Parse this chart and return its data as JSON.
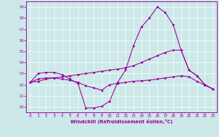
{
  "xlabel": "Windchill (Refroidissement éolien,°C)",
  "bg_color": "#cce8e8",
  "line_color": "#990099",
  "grid_color": "#ffffff",
  "xlim": [
    -0.5,
    23.5
  ],
  "ylim": [
    9.5,
    19.5
  ],
  "xticks": [
    0,
    1,
    2,
    3,
    4,
    5,
    6,
    7,
    8,
    9,
    10,
    11,
    12,
    13,
    14,
    15,
    16,
    17,
    18,
    19,
    20,
    21,
    22,
    23
  ],
  "yticks": [
    10,
    11,
    12,
    13,
    14,
    15,
    16,
    17,
    18,
    19
  ],
  "curve1": {
    "x": [
      0,
      1,
      2,
      3,
      4,
      5,
      6,
      7,
      8,
      9,
      10,
      11,
      12,
      13,
      14,
      15,
      16,
      17,
      18,
      19,
      20,
      21,
      22,
      23
    ],
    "y": [
      12.2,
      13.0,
      13.1,
      13.1,
      12.9,
      12.5,
      12.1,
      9.9,
      9.9,
      10.05,
      10.5,
      12.2,
      13.3,
      15.5,
      17.2,
      18.0,
      19.0,
      18.5,
      17.4,
      15.1,
      13.3,
      12.8,
      12.0,
      11.6
    ]
  },
  "curve2": {
    "x": [
      0,
      1,
      2,
      3,
      4,
      5,
      6,
      7,
      8,
      9,
      10,
      11,
      12,
      13,
      14,
      15,
      16,
      17,
      18,
      19,
      20,
      21,
      22,
      23
    ],
    "y": [
      12.2,
      12.3,
      12.5,
      12.6,
      12.7,
      12.8,
      12.9,
      13.0,
      13.1,
      13.2,
      13.3,
      13.4,
      13.5,
      13.7,
      14.0,
      14.3,
      14.6,
      14.9,
      15.1,
      15.1,
      13.3,
      12.8,
      12.0,
      11.6
    ]
  },
  "curve3": {
    "x": [
      0,
      1,
      2,
      3,
      4,
      5,
      6,
      7,
      8,
      9,
      10,
      11,
      12,
      13,
      14,
      15,
      16,
      17,
      18,
      19,
      20,
      21,
      22,
      23
    ],
    "y": [
      12.2,
      12.5,
      12.6,
      12.6,
      12.5,
      12.4,
      12.2,
      11.9,
      11.7,
      11.5,
      12.0,
      12.1,
      12.2,
      12.3,
      12.35,
      12.4,
      12.5,
      12.6,
      12.7,
      12.8,
      12.7,
      12.3,
      11.95,
      11.6
    ]
  }
}
